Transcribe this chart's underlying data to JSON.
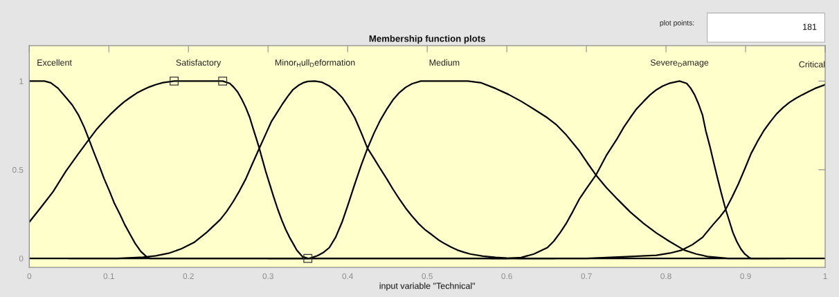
{
  "chart_data": {
    "type": "line",
    "title": "Membership function plots",
    "xlabel": "input variable \"Technical\"",
    "annotations": [
      "plot points:",
      "181"
    ],
    "xlim": [
      0,
      1
    ],
    "ylim": [
      -0.05,
      1.2
    ],
    "xticks": [
      0,
      0.1,
      0.2,
      0.3,
      0.4,
      0.5,
      0.6,
      0.7,
      0.8,
      0.9,
      1
    ],
    "yticks": [
      0,
      0.5,
      1
    ],
    "series": [
      {
        "name": "Excellent",
        "color": "#000000",
        "x": [
          0,
          0.019,
          0.027,
          0.036,
          0.046,
          0.054,
          0.062,
          0.069,
          0.075,
          0.081,
          0.088,
          0.094,
          0.101,
          0.107,
          0.114,
          0.12,
          0.127,
          0.133,
          0.14,
          0.148,
          0.152,
          1
        ],
        "values": [
          1,
          1,
          0.99,
          0.96,
          0.908,
          0.865,
          0.807,
          0.74,
          0.671,
          0.6,
          0.521,
          0.45,
          0.377,
          0.31,
          0.248,
          0.19,
          0.133,
          0.085,
          0.04,
          0.007,
          0,
          0
        ]
      },
      {
        "name": "Satisfactory",
        "color": "#000000",
        "x": [
          0,
          0.015,
          0.03,
          0.046,
          0.062,
          0.075,
          0.085,
          0.095,
          0.103,
          0.111,
          0.119,
          0.127,
          0.135,
          0.143,
          0.151,
          0.159,
          0.168,
          0.182,
          0.243,
          0.252,
          0.257,
          0.262,
          0.267,
          0.272,
          0.277,
          0.281,
          0.285,
          0.289,
          0.293,
          0.297,
          0.302,
          0.307,
          0.312,
          0.317,
          0.322,
          0.327,
          0.332,
          0.336,
          0.343,
          0.35
        ],
        "values": [
          0.205,
          0.29,
          0.377,
          0.492,
          0.592,
          0.671,
          0.73,
          0.779,
          0.817,
          0.851,
          0.882,
          0.908,
          0.932,
          0.951,
          0.967,
          0.98,
          0.991,
          1,
          1,
          0.987,
          0.965,
          0.937,
          0.897,
          0.851,
          0.795,
          0.736,
          0.68,
          0.621,
          0.556,
          0.492,
          0.42,
          0.348,
          0.28,
          0.219,
          0.165,
          0.119,
          0.08,
          0.047,
          0.011,
          0
        ]
      },
      {
        "name": "Minor$_{H}$ull$_{D}$eformation",
        "color": "#000000",
        "x": [
          0.05,
          0.111,
          0.143,
          0.159,
          0.175,
          0.191,
          0.207,
          0.223,
          0.24,
          0.248,
          0.256,
          0.264,
          0.272,
          0.28,
          0.289,
          0.297,
          0.304,
          0.311,
          0.318,
          0.325,
          0.331,
          0.338,
          0.344,
          0.35,
          0.359,
          0.368,
          0.377,
          0.385,
          0.393,
          0.401,
          0.409,
          0.417,
          0.425,
          0.433,
          0.441,
          0.449,
          0.457,
          0.465,
          0.473,
          0.481,
          0.489,
          0.497,
          0.506,
          0.514,
          0.522,
          0.53,
          0.538,
          0.546,
          0.554,
          0.57,
          0.586,
          0.6,
          0.618,
          0.66
        ],
        "values": [
          0,
          0,
          0.007,
          0.015,
          0.029,
          0.054,
          0.09,
          0.147,
          0.219,
          0.265,
          0.319,
          0.38,
          0.448,
          0.53,
          0.621,
          0.7,
          0.77,
          0.82,
          0.87,
          0.915,
          0.95,
          0.975,
          0.99,
          0.998,
          1,
          0.993,
          0.972,
          0.945,
          0.908,
          0.855,
          0.793,
          0.71,
          0.621,
          0.565,
          0.506,
          0.45,
          0.39,
          0.335,
          0.283,
          0.238,
          0.197,
          0.163,
          0.133,
          0.105,
          0.083,
          0.064,
          0.047,
          0.035,
          0.025,
          0.013,
          0.006,
          0.002,
          0,
          0
        ]
      },
      {
        "name": "Medium",
        "color": "#000000",
        "x": [
          0.3,
          0.352,
          0.362,
          0.37,
          0.377,
          0.385,
          0.393,
          0.401,
          0.409,
          0.417,
          0.425,
          0.433,
          0.441,
          0.449,
          0.457,
          0.465,
          0.473,
          0.481,
          0.492,
          0.551,
          0.568,
          0.586,
          0.602,
          0.618,
          0.634,
          0.651,
          0.662,
          0.674,
          0.691,
          0.701,
          0.712,
          0.725,
          0.739,
          0.755,
          0.772,
          0.788,
          0.804,
          0.823,
          0.838,
          0.852,
          0.878,
          0.93
        ],
        "values": [
          0,
          0,
          0.015,
          0.035,
          0.061,
          0.12,
          0.205,
          0.31,
          0.42,
          0.525,
          0.621,
          0.705,
          0.779,
          0.84,
          0.894,
          0.935,
          0.965,
          0.985,
          1,
          1,
          0.99,
          0.958,
          0.925,
          0.886,
          0.842,
          0.793,
          0.755,
          0.7,
          0.607,
          0.54,
          0.47,
          0.4,
          0.334,
          0.262,
          0.197,
          0.143,
          0.097,
          0.047,
          0.025,
          0.011,
          0,
          0
        ]
      },
      {
        "name": "Severe$_{D}$amage",
        "color": "#000000",
        "x": [
          0.58,
          0.6,
          0.618,
          0.634,
          0.651,
          0.659,
          0.667,
          0.675,
          0.683,
          0.691,
          0.701,
          0.712,
          0.725,
          0.739,
          0.747,
          0.755,
          0.763,
          0.772,
          0.78,
          0.788,
          0.796,
          0.804,
          0.817,
          0.826,
          0.831,
          0.836,
          0.841,
          0.846,
          0.85,
          0.855,
          0.86,
          0.865,
          0.87,
          0.875,
          0.88,
          0.884,
          0.889,
          0.894,
          0.899,
          0.904,
          0.907,
          0.95
        ],
        "values": [
          0,
          0,
          0.005,
          0.025,
          0.061,
          0.097,
          0.145,
          0.2,
          0.265,
          0.334,
          0.4,
          0.47,
          0.58,
          0.678,
          0.74,
          0.793,
          0.843,
          0.886,
          0.922,
          0.951,
          0.972,
          0.987,
          1,
          0.987,
          0.96,
          0.922,
          0.87,
          0.807,
          0.72,
          0.635,
          0.54,
          0.448,
          0.36,
          0.276,
          0.205,
          0.147,
          0.095,
          0.054,
          0.025,
          0.007,
          0,
          0
        ]
      },
      {
        "name": "Critical",
        "color": "#000000",
        "x": [
          0,
          0.7,
          0.755,
          0.788,
          0.805,
          0.82,
          0.833,
          0.846,
          0.859,
          0.867,
          0.875,
          0.883,
          0.891,
          0.899,
          0.907,
          0.915,
          0.923,
          0.931,
          0.939,
          0.947,
          0.955,
          0.963,
          0.971,
          0.979,
          0.987,
          1
        ],
        "values": [
          0,
          0,
          0.011,
          0.018,
          0.03,
          0.047,
          0.077,
          0.119,
          0.19,
          0.23,
          0.276,
          0.345,
          0.42,
          0.505,
          0.592,
          0.66,
          0.721,
          0.77,
          0.815,
          0.85,
          0.879,
          0.902,
          0.922,
          0.94,
          0.958,
          0.98
        ]
      },
      {
        "type": "scatter",
        "marker": "square",
        "color": "#333333",
        "x": [
          0.182,
          0.243,
          0.35
        ],
        "values": [
          1,
          1,
          0
        ]
      }
    ]
  }
}
